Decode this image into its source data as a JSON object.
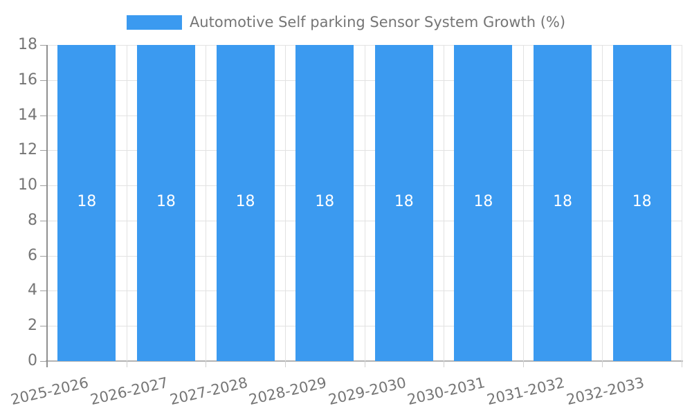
{
  "chart_data": {
    "type": "bar",
    "title": "Automotive Self parking Sensor System Growth (%)",
    "categories": [
      "2025-2026",
      "2026-2027",
      "2027-2028",
      "2028-2029",
      "2029-2030",
      "2030-2031",
      "2031-2032",
      "2032-2033"
    ],
    "values": [
      18,
      18,
      18,
      18,
      18,
      18,
      18,
      18
    ],
    "bar_value_labels": [
      "18",
      "18",
      "18",
      "18",
      "18",
      "18",
      "18",
      "18"
    ],
    "yticks": [
      0,
      2,
      4,
      6,
      8,
      10,
      12,
      14,
      16,
      18
    ],
    "ylim": [
      0,
      18
    ],
    "xlabel": "",
    "ylabel": "",
    "legend_position": "top",
    "grid": true,
    "bar_color": "#3B9AF0",
    "bar_label_color": "#FFFFFF",
    "axis_text_color": "#757575"
  }
}
